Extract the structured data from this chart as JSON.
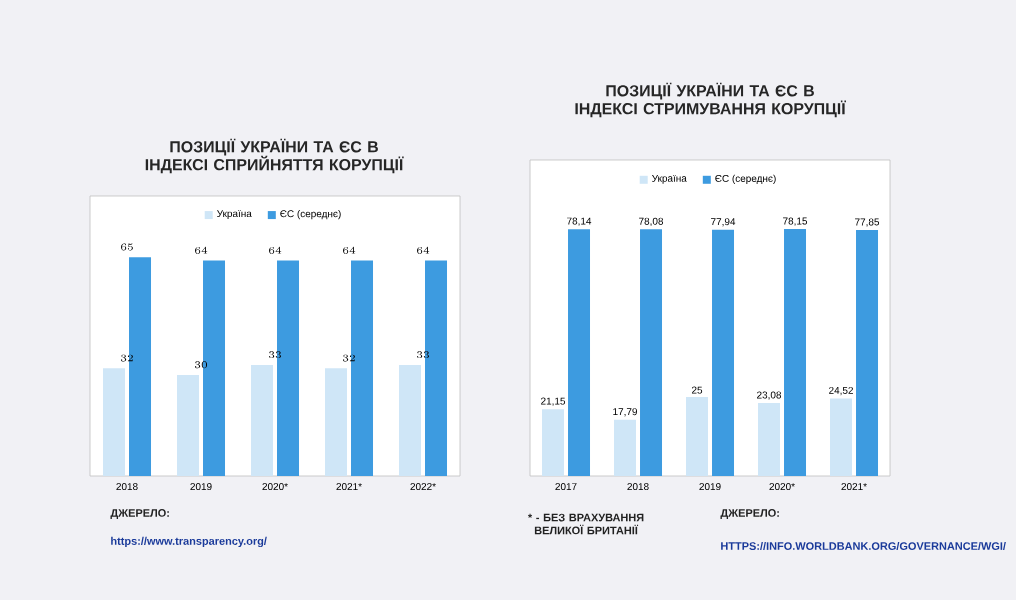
{
  "chart_data": [
    {
      "type": "bar",
      "title": "ПОЗИЦІЇ УКРАЇНИ ТА ЄС В ІНДЕКСІ СПРИЙНЯТТЯ КОРУПЦІЇ",
      "categories": [
        "2018",
        "2019",
        "2020*",
        "2021*",
        "2022*"
      ],
      "legend": "top",
      "data_labels": true,
      "series": [
        {
          "name": "Україна",
          "color": "#cfe6f7",
          "values": [
            32,
            30,
            33,
            32,
            33
          ]
        },
        {
          "name": "ЄС (середнє)",
          "color": "#3d9be0",
          "values": [
            65,
            64,
            64,
            64,
            64
          ]
        }
      ],
      "annotations": [
        "ДЖЕРЕЛО:",
        "https://www.transparency.org/",
        "* - БЕЗ ВРАХУВАННЯ ВЕЛИКОЇ БРИТАНІЇ"
      ]
    },
    {
      "type": "bar",
      "title": "ПОЗИЦІЇ УКРАЇНИ ТА ЄС В ІНДЕКСІ СТРИМУВАННЯ КОРУПЦІЇ",
      "categories": [
        "2017",
        "2018",
        "2019",
        "2020*",
        "2021*"
      ],
      "legend": "top",
      "series": [
        {
          "name": "Україна",
          "color": "#cfe6f7",
          "values": [
            21.15,
            17.79,
            25,
            23.08,
            24.52
          ],
          "value_labels": [
            "21,15",
            "17,79",
            "25",
            "23,08",
            "24,52"
          ]
        },
        {
          "name": "ЄС (середнє)",
          "color": "#3d9be0",
          "values": [
            78.14,
            78.08,
            77.94,
            78.15,
            77.85
          ],
          "value_labels": [
            "78,14",
            "78,08",
            "77,94",
            "78,15",
            "77,85"
          ]
        }
      ],
      "annotations": [
        "ДЖЕРЕЛО:",
        "HTTPS://INFO.WORLDBANK.ORG/GOVERNANCE/WGI/"
      ]
    }
  ]
}
